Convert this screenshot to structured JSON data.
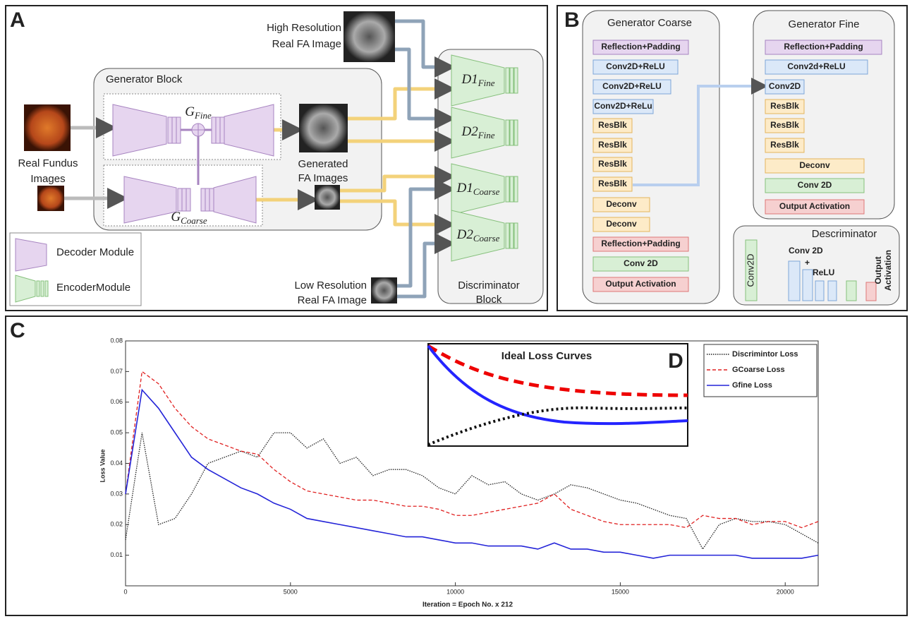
{
  "panel_a": {
    "label": "A",
    "high_res": [
      "High Resolution",
      "Real FA Image"
    ],
    "generator_block": "Generator Block",
    "g_fine": {
      "main": "G",
      "sub": "Fine"
    },
    "g_coarse": {
      "main": "G",
      "sub": "Coarse"
    },
    "fundus": [
      "Real Fundus",
      "Images"
    ],
    "generated": [
      "Generated",
      "FA Images"
    ],
    "discriminators": [
      {
        "main": "D1",
        "sub": "Fine"
      },
      {
        "main": "D2",
        "sub": "Fine"
      },
      {
        "main": "D1",
        "sub": "Coarse"
      },
      {
        "main": "D2",
        "sub": "Coarse"
      }
    ],
    "low_res": [
      "Low Resolution",
      "Real FA Image"
    ],
    "discriminator_block": [
      "Discriminator",
      "Block"
    ],
    "legend": [
      "Decoder Module",
      "EncoderModule"
    ]
  },
  "panel_b": {
    "label": "B",
    "coarse": {
      "title": "Generator Coarse",
      "blocks": [
        "Reflection+Padding",
        "Conv2D+ReLU",
        "Conv2D+ReLU",
        "Conv2D+ReLu",
        "ResBlk",
        "ResBlk",
        "ResBlk",
        "ResBlk",
        "Deconv",
        "Deconv",
        "Reflection+Padding",
        "Conv 2D",
        "Output Activation"
      ]
    },
    "fine": {
      "title": "Generator Fine",
      "blocks": [
        "Reflection+Padding",
        "Conv2d+ReLU",
        "Conv2D",
        "ResBlk",
        "ResBlk",
        "ResBlk",
        "Deconv",
        "Conv 2D",
        "Output Activation"
      ]
    },
    "discriminator": {
      "title": "Descriminator",
      "first": "Conv2D",
      "conv": "Conv 2D",
      "plus": "+",
      "relu": "ReLU",
      "output": [
        "Output",
        "Activation"
      ]
    }
  },
  "chart_data": {
    "type": "line",
    "panel_label": "C",
    "x_label": "Iteration = Epoch No. x 212",
    "y_label": "Loss Value",
    "x": [
      0,
      500,
      1000,
      1500,
      2000,
      2500,
      3000,
      3500,
      4000,
      4500,
      5000,
      5500,
      6000,
      6500,
      7000,
      7500,
      8000,
      8500,
      9000,
      9500,
      10000,
      10500,
      11000,
      11500,
      12000,
      12500,
      13000,
      13500,
      14000,
      14500,
      15000,
      15500,
      16000,
      16500,
      17000,
      17500,
      18000,
      18500,
      19000,
      19500,
      20000,
      20500,
      21000
    ],
    "series": [
      {
        "name": "Discrimintor Loss",
        "color": "#222222",
        "linestyle": "dotted",
        "values": [
          0.015,
          0.05,
          0.02,
          0.022,
          0.03,
          0.04,
          0.042,
          0.044,
          0.042,
          0.05,
          0.05,
          0.045,
          0.048,
          0.04,
          0.042,
          0.036,
          0.038,
          0.038,
          0.036,
          0.032,
          0.03,
          0.036,
          0.033,
          0.034,
          0.03,
          0.028,
          0.03,
          0.033,
          0.032,
          0.03,
          0.028,
          0.027,
          0.025,
          0.023,
          0.022,
          0.012,
          0.02,
          0.022,
          0.021,
          0.021,
          0.02,
          0.017,
          0.014
        ]
      },
      {
        "name": "GCoarse Loss",
        "color": "#e02020",
        "linestyle": "dashed",
        "values": [
          0.03,
          0.07,
          0.066,
          0.058,
          0.052,
          0.048,
          0.046,
          0.044,
          0.043,
          0.038,
          0.034,
          0.031,
          0.03,
          0.029,
          0.028,
          0.028,
          0.027,
          0.026,
          0.026,
          0.025,
          0.023,
          0.023,
          0.024,
          0.025,
          0.026,
          0.027,
          0.03,
          0.025,
          0.023,
          0.021,
          0.02,
          0.02,
          0.02,
          0.02,
          0.019,
          0.023,
          0.022,
          0.022,
          0.02,
          0.021,
          0.021,
          0.019,
          0.021
        ]
      },
      {
        "name": "Gfine Loss",
        "color": "#2424d8",
        "linestyle": "solid",
        "values": [
          0.03,
          0.064,
          0.058,
          0.05,
          0.042,
          0.038,
          0.035,
          0.032,
          0.03,
          0.027,
          0.025,
          0.022,
          0.021,
          0.02,
          0.019,
          0.018,
          0.017,
          0.016,
          0.016,
          0.015,
          0.014,
          0.014,
          0.013,
          0.013,
          0.013,
          0.012,
          0.014,
          0.012,
          0.012,
          0.011,
          0.011,
          0.01,
          0.009,
          0.01,
          0.01,
          0.01,
          0.01,
          0.01,
          0.009,
          0.009,
          0.009,
          0.009,
          0.01
        ]
      }
    ],
    "xlim": [
      0,
      21000
    ],
    "xticks": [
      0,
      5000,
      10000,
      15000,
      20000
    ],
    "ylim": [
      0,
      0.08
    ],
    "yticks": [
      0.01,
      0.02,
      0.03,
      0.04,
      0.05,
      0.06,
      0.07,
      0.08
    ],
    "grid": false,
    "legend": "upper right",
    "inset": {
      "title": "Ideal Loss Curves",
      "label": "D"
    }
  }
}
